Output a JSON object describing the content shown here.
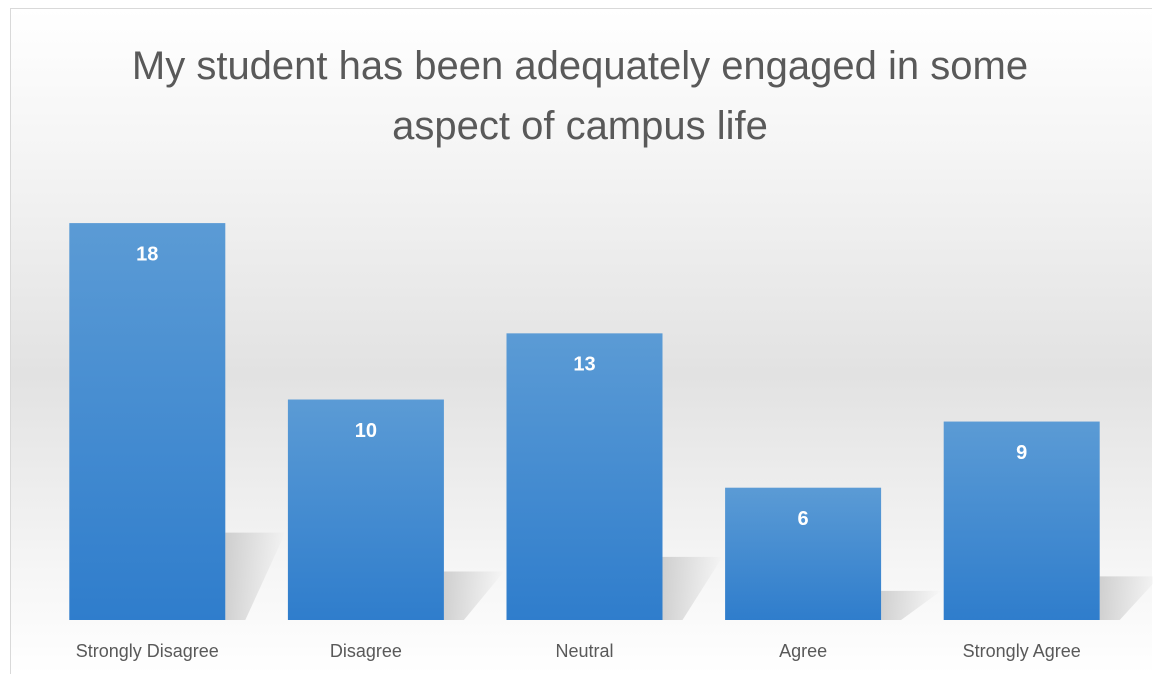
{
  "chart_data": {
    "type": "bar",
    "title": "My student has been adequately engaged in some aspect of campus life",
    "categories": [
      "Strongly Disagree",
      "Disagree",
      "Neutral",
      "Agree",
      "Strongly Agree"
    ],
    "values": [
      18,
      10,
      13,
      6,
      9
    ],
    "color": "#5b9bd5",
    "ylim": [
      0,
      20
    ]
  }
}
